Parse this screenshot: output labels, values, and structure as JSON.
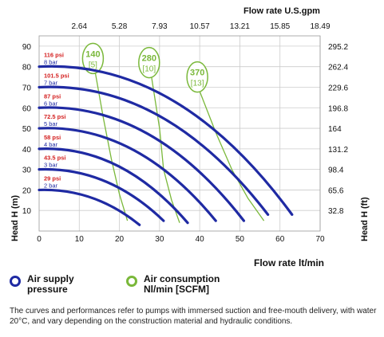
{
  "chart_data": {
    "type": "line",
    "xlabel": "Flow rate lt/min",
    "xlabel_top": "Flow rate U.S.gpm",
    "ylabel_left": "Head H (m)",
    "ylabel_right": "Head H (ft)",
    "xlim": [
      0,
      70
    ],
    "ylim": [
      0,
      95
    ],
    "x_ticks": [
      "0",
      "10",
      "20",
      "30",
      "40",
      "50",
      "60",
      "70"
    ],
    "x_ticks_top": [
      {
        "x": 10,
        "label": "2.64"
      },
      {
        "x": 20,
        "label": "5.28"
      },
      {
        "x": 30,
        "label": "7.93"
      },
      {
        "x": 40,
        "label": "10.57"
      },
      {
        "x": 50,
        "label": "13.21"
      },
      {
        "x": 60,
        "label": "15.85"
      },
      {
        "x": 70,
        "label": "18.49"
      }
    ],
    "y_ticks": [
      "10",
      "20",
      "30",
      "40",
      "50",
      "60",
      "70",
      "80",
      "90"
    ],
    "y_ticks_right": [
      {
        "y": 10,
        "label": "32.8"
      },
      {
        "y": 20,
        "label": "65.6"
      },
      {
        "y": 30,
        "label": "98.4"
      },
      {
        "y": 40,
        "label": "131.2"
      },
      {
        "y": 50,
        "label": "164"
      },
      {
        "y": 60,
        "label": "196.8"
      },
      {
        "y": 70,
        "label": "229.6"
      },
      {
        "y": 80,
        "label": "262.4"
      },
      {
        "y": 90,
        "label": "295.2"
      }
    ],
    "pressure_series": [
      {
        "psi": "29 psi",
        "bar": "2 bar",
        "y0": 20,
        "x_end": 25,
        "y_end": 3
      },
      {
        "psi": "43.5 psi",
        "bar": "3 bar",
        "y0": 30,
        "x_end": 31,
        "y_end": 5
      },
      {
        "psi": "58 psi",
        "bar": "4 bar",
        "y0": 40,
        "x_end": 37,
        "y_end": 4
      },
      {
        "psi": "72.5 psi",
        "bar": "5 bar",
        "y0": 50,
        "x_end": 44,
        "y_end": 5
      },
      {
        "psi": "87 psi",
        "bar": "6 bar",
        "y0": 60,
        "x_end": 51,
        "y_end": 5
      },
      {
        "psi": "101.5 psi",
        "bar": "7 bar",
        "y0": 70,
        "x_end": 57,
        "y_end": 8
      },
      {
        "psi": "116 psi",
        "bar": "8 bar",
        "y0": 80,
        "x_end": 63,
        "y_end": 8
      }
    ],
    "air_series": [
      {
        "value": "140",
        "scfm": "[5]",
        "points": [
          [
            14,
            77
          ],
          [
            16,
            55
          ],
          [
            18,
            35
          ],
          [
            20,
            18
          ],
          [
            22,
            5
          ]
        ]
      },
      {
        "value": "280",
        "scfm": "[10]",
        "points": [
          [
            28,
            75
          ],
          [
            30,
            50
          ],
          [
            31,
            30
          ],
          [
            33,
            15
          ],
          [
            35,
            4
          ]
        ]
      },
      {
        "value": "370",
        "scfm": "[13]",
        "points": [
          [
            40,
            68
          ],
          [
            44,
            48
          ],
          [
            48,
            30
          ],
          [
            52,
            16
          ],
          [
            56,
            5
          ]
        ]
      }
    ],
    "colors": {
      "pressure_curve": "#1f2aa3",
      "air_curve": "#7ab83a",
      "psi_text": "#d42020",
      "bar_text": "#1f2aa3",
      "grid": "#cccccc"
    },
    "grid": true
  },
  "legend": {
    "air_supply": "Air supply\npressure",
    "air_consumption": "Air consumption\nNl/min [SCFM]"
  },
  "note": "The curves and performances refer to pumps with immersed suction and free-mouth delivery, with water 20°C, and vary depending on the construction material and hydraulic conditions."
}
